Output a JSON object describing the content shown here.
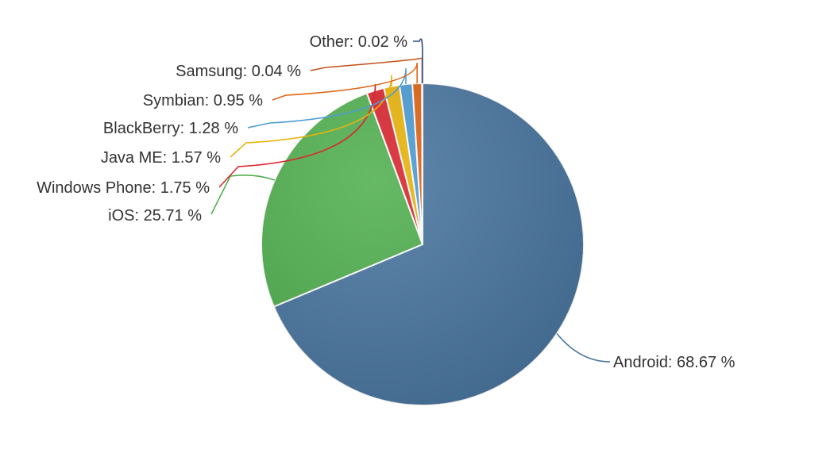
{
  "chart_data": {
    "type": "pie",
    "title": "",
    "slices": [
      {
        "name": "Android",
        "value": 68.67,
        "label": "Android: 68.67 %",
        "color": "#4a76a0"
      },
      {
        "name": "iOS",
        "value": 25.71,
        "label": "iOS: 25.71 %",
        "color": "#52b050"
      },
      {
        "name": "Windows Phone",
        "value": 1.75,
        "label": "Windows Phone: 1.75 %",
        "color": "#d9262f"
      },
      {
        "name": "Java ME",
        "value": 1.57,
        "label": "Java ME: 1.57 %",
        "color": "#e8b40c"
      },
      {
        "name": "BlackBerry",
        "value": 1.28,
        "label": "BlackBerry: 1.28 %",
        "color": "#4c9cd6"
      },
      {
        "name": "Symbian",
        "value": 0.95,
        "label": "Symbian: 0.95 %",
        "color": "#e06414"
      },
      {
        "name": "Samsung",
        "value": 0.04,
        "label": "Samsung: 0.04 %",
        "color": "#c4501a"
      },
      {
        "name": "Other",
        "value": 0.02,
        "label": "Other: 0.02 %",
        "color": "#2f4f80"
      }
    ],
    "legend": "none",
    "data_labels": "outside with leader lines"
  }
}
